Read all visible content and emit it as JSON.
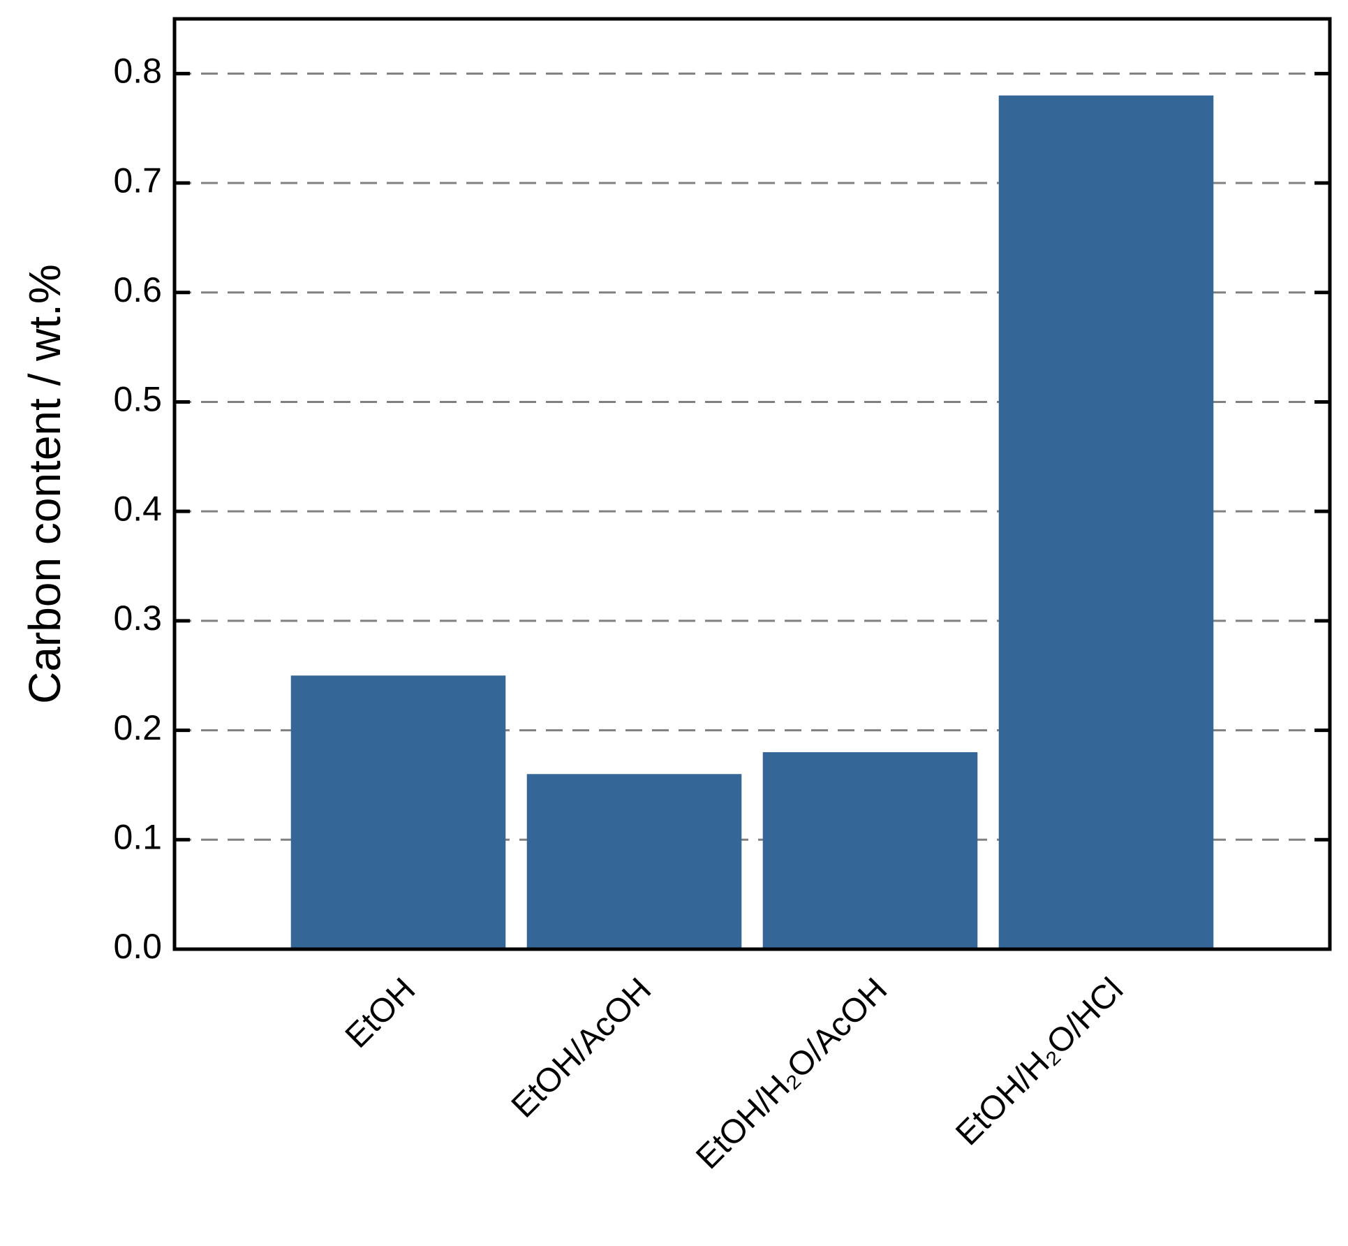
{
  "chart_data": {
    "type": "bar",
    "y_label": "Carbon content / wt.%",
    "categories": [
      "EtOH",
      "EtOH/AcOH",
      "EtOH/H₂O/AcOH",
      "EtOH/H₂O/HCl"
    ],
    "values": [
      0.25,
      0.16,
      0.18,
      0.78
    ],
    "color": "#346698",
    "ylim": [
      0,
      0.85
    ],
    "yticks": [
      {
        "value": 0,
        "label": "0.0"
      },
      0.1,
      0.2,
      0.3,
      0.4,
      0.5,
      0.6,
      0.7,
      0.8
    ],
    "grid": true
  }
}
